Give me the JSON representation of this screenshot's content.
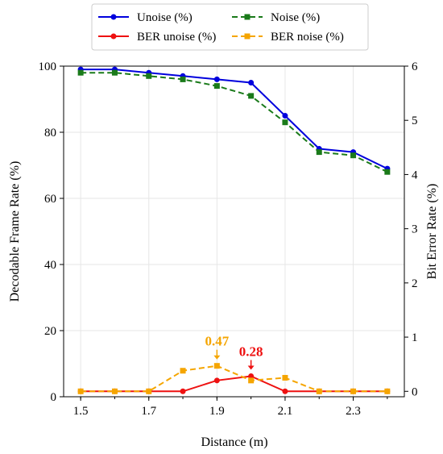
{
  "chart_data": {
    "type": "line",
    "xlabel": "Distance (m)",
    "ylabel_left": "Decodable Frame Rate (%)",
    "ylabel_right": "Bit Error Rate (%)",
    "x": [
      1.5,
      1.6,
      1.7,
      1.8,
      1.9,
      2.0,
      2.1,
      2.2,
      2.3,
      2.4
    ],
    "xlim": [
      1.45,
      2.45
    ],
    "ylim_left": [
      0,
      100
    ],
    "ylim_right": [
      -0.1,
      6
    ],
    "xticks": [
      "1.5",
      "1.7",
      "1.9",
      "2.1",
      "2.3"
    ],
    "yticks_left": [
      "0",
      "20",
      "40",
      "60",
      "80",
      "100"
    ],
    "yticks_right": [
      "0",
      "1",
      "2",
      "3",
      "4",
      "5",
      "6"
    ],
    "grid": true,
    "legend_position": "top-outside",
    "series": [
      {
        "name": "Unoise (%)",
        "axis": "left",
        "color": "#0000dd",
        "style": "solid",
        "marker": "circle",
        "values": [
          99,
          99,
          98,
          97,
          96,
          95,
          85,
          75,
          74,
          69
        ]
      },
      {
        "name": "Noise (%)",
        "axis": "left",
        "color": "#1a7a1a",
        "style": "dashed",
        "marker": "square",
        "values": [
          98,
          98,
          97,
          96,
          94,
          91,
          83,
          74,
          73,
          68
        ]
      },
      {
        "name": "BER unoise (%)",
        "axis": "right",
        "color": "#ee1111",
        "style": "solid",
        "marker": "circle",
        "values": [
          0,
          0,
          0,
          0,
          0.2,
          0.28,
          0,
          0,
          0,
          0
        ]
      },
      {
        "name": "BER noise (%)",
        "axis": "right",
        "color": "#f5a500",
        "style": "dashed",
        "marker": "square",
        "values": [
          0,
          0,
          0,
          0.38,
          0.47,
          0.2,
          0.25,
          0,
          0,
          0
        ]
      }
    ],
    "annotations": [
      {
        "text": "0.47",
        "series": 3,
        "index": 4,
        "color": "#f5a500"
      },
      {
        "text": "0.28",
        "series": 2,
        "index": 5,
        "color": "#ee1111"
      }
    ]
  }
}
